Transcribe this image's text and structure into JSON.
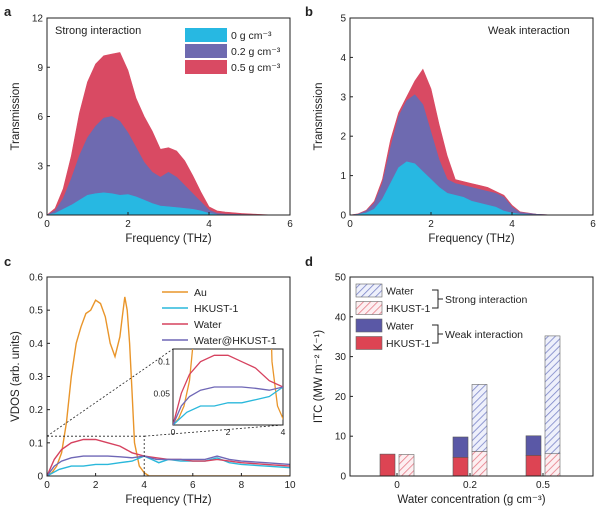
{
  "colors": {
    "s0": "#27b8e2",
    "s02": "#6e6ab0",
    "s05": "#d94a63",
    "au": "#e9952a",
    "hkust": "#2ab8db",
    "water": "#d6425f",
    "waterhk": "#6f67b6",
    "itc_hk": "#dd4453",
    "itc_water": "#5a58a6",
    "itc_hk_hatch": "#e77a86",
    "itc_water_hatch": "#7a84c7"
  },
  "panels": {
    "a": {
      "label": "a",
      "text": "Strong interaction"
    },
    "b": {
      "label": "b",
      "text": "Weak interaction"
    },
    "c": {
      "label": "c"
    },
    "d": {
      "label": "d"
    }
  },
  "chart_data": [
    {
      "type": "area",
      "panel": "a",
      "title": "Strong interaction",
      "xlabel": "Frequency (THz)",
      "ylabel": "Transmission",
      "xlim": [
        0,
        6
      ],
      "ylim": [
        0,
        12
      ],
      "xticks": [
        0,
        2,
        4,
        6
      ],
      "yticks": [
        0,
        3,
        6,
        9,
        12
      ],
      "legend": [
        "0 g cm⁻³",
        "0.2 g cm⁻³",
        "0.5 g cm⁻³"
      ],
      "legend_position": "top-right",
      "x": [
        0,
        0.2,
        0.4,
        0.6,
        0.8,
        1.0,
        1.2,
        1.4,
        1.6,
        1.8,
        2.0,
        2.2,
        2.4,
        2.6,
        2.8,
        3.0,
        3.2,
        3.4,
        3.6,
        3.8,
        4.0,
        4.2,
        4.4,
        4.8,
        5.2,
        5.6
      ],
      "series": [
        {
          "name": "0.5 g cm⁻³",
          "values": [
            0,
            0.4,
            1.6,
            3.6,
            6.2,
            8.1,
            9.2,
            9.7,
            9.8,
            9.9,
            8.8,
            7.1,
            6.0,
            5.1,
            4.0,
            4.1,
            3.9,
            3.3,
            2.4,
            1.4,
            0.5,
            0.25,
            0.18,
            0.1,
            0.04,
            0
          ]
        },
        {
          "name": "0.2 g cm⁻³",
          "values": [
            0,
            0.25,
            1.0,
            2.2,
            3.6,
            4.7,
            5.4,
            5.9,
            6.0,
            5.7,
            5.0,
            4.1,
            3.2,
            2.6,
            2.3,
            2.6,
            2.3,
            1.8,
            1.3,
            0.8,
            0.3,
            0.1,
            0.06,
            0.03,
            0.01,
            0
          ]
        },
        {
          "name": "0 g cm⁻³",
          "values": [
            0,
            0.1,
            0.35,
            0.6,
            0.9,
            1.2,
            1.3,
            1.35,
            1.3,
            1.2,
            1.25,
            1.1,
            0.9,
            0.7,
            0.55,
            0.5,
            0.45,
            0.4,
            0.35,
            0.25,
            0.1,
            0.03,
            0.01,
            0,
            0,
            0
          ]
        }
      ]
    },
    {
      "type": "area",
      "panel": "b",
      "title": "Weak interaction",
      "xlabel": "Frequency (THz)",
      "ylabel": "Transmission",
      "xlim": [
        0,
        6
      ],
      "ylim": [
        0,
        5
      ],
      "xticks": [
        0,
        2,
        4,
        6
      ],
      "yticks": [
        0,
        1,
        2,
        3,
        4,
        5
      ],
      "x": [
        0,
        0.2,
        0.4,
        0.6,
        0.8,
        1.0,
        1.2,
        1.4,
        1.6,
        1.8,
        2.0,
        2.2,
        2.4,
        2.6,
        2.8,
        3.0,
        3.2,
        3.4,
        3.6,
        3.8,
        4.0,
        4.2,
        4.6,
        5.0
      ],
      "series": [
        {
          "name": "0.5 g cm⁻³",
          "values": [
            0,
            0.03,
            0.12,
            0.35,
            0.9,
            1.9,
            2.6,
            3.0,
            3.4,
            3.7,
            3.2,
            2.3,
            1.5,
            0.9,
            0.85,
            0.8,
            0.75,
            0.7,
            0.6,
            0.5,
            0.25,
            0.08,
            0.02,
            0
          ]
        },
        {
          "name": "0.2 g cm⁻³",
          "values": [
            0,
            0.02,
            0.1,
            0.3,
            0.8,
            1.7,
            2.5,
            2.9,
            3.05,
            2.8,
            2.1,
            1.4,
            0.9,
            0.8,
            0.75,
            0.7,
            0.65,
            0.6,
            0.55,
            0.45,
            0.2,
            0.06,
            0.02,
            0
          ]
        },
        {
          "name": "0 g cm⁻³",
          "values": [
            0,
            0.01,
            0.05,
            0.15,
            0.4,
            0.8,
            1.2,
            1.35,
            1.3,
            1.1,
            0.9,
            0.7,
            0.55,
            0.5,
            0.45,
            0.35,
            0.3,
            0.25,
            0.2,
            0.1,
            0.05,
            0.02,
            0,
            0
          ]
        }
      ]
    },
    {
      "type": "line",
      "panel": "c",
      "xlabel": "Frequency (THz)",
      "ylabel": "VDOS (arb. units)",
      "xlim": [
        0,
        10
      ],
      "ylim": [
        0,
        0.6
      ],
      "xticks": [
        0,
        2,
        4,
        6,
        8,
        10
      ],
      "yticks": [
        0,
        0.1,
        0.2,
        0.3,
        0.4,
        0.5,
        0.6
      ],
      "legend": [
        "Au",
        "HKUST-1",
        "Water",
        "Water@HKUST-1"
      ],
      "legend_position": "top-right",
      "series": [
        {
          "name": "Au",
          "x": [
            0,
            0.2,
            0.4,
            0.6,
            0.8,
            1.0,
            1.2,
            1.4,
            1.6,
            1.8,
            2.0,
            2.2,
            2.4,
            2.6,
            2.8,
            3.0,
            3.1,
            3.2,
            3.3,
            3.4,
            3.5,
            3.6,
            3.8,
            4.0,
            4.2,
            4.5,
            5,
            6,
            7,
            8,
            9,
            10
          ],
          "y": [
            0,
            0.01,
            0.03,
            0.07,
            0.16,
            0.3,
            0.4,
            0.45,
            0.49,
            0.5,
            0.53,
            0.52,
            0.48,
            0.4,
            0.36,
            0.42,
            0.48,
            0.54,
            0.5,
            0.4,
            0.25,
            0.1,
            0.03,
            0.01,
            0,
            0,
            0,
            0,
            0,
            0,
            0,
            0
          ]
        },
        {
          "name": "HKUST-1",
          "x": [
            0,
            0.5,
            1,
            1.5,
            2,
            2.5,
            3,
            3.5,
            4,
            4.3,
            4.6,
            5,
            5.5,
            6,
            6.5,
            7,
            7.5,
            8,
            9,
            10
          ],
          "y": [
            0,
            0.02,
            0.03,
            0.03,
            0.035,
            0.035,
            0.04,
            0.045,
            0.06,
            0.05,
            0.04,
            0.05,
            0.045,
            0.045,
            0.045,
            0.055,
            0.04,
            0.035,
            0.03,
            0.025
          ]
        },
        {
          "name": "Water",
          "x": [
            0,
            0.3,
            0.6,
            1,
            1.5,
            2,
            2.5,
            3,
            3.5,
            4,
            4.5,
            5,
            5.5,
            6,
            6.5,
            7,
            7.5,
            8,
            9,
            10
          ],
          "y": [
            0,
            0.05,
            0.08,
            0.1,
            0.11,
            0.11,
            0.1,
            0.09,
            0.07,
            0.06,
            0.055,
            0.05,
            0.05,
            0.045,
            0.045,
            0.05,
            0.045,
            0.04,
            0.035,
            0.03
          ]
        },
        {
          "name": "Water@HKUST-1",
          "x": [
            0,
            0.3,
            0.6,
            1,
            1.5,
            2,
            2.5,
            3,
            3.5,
            4,
            4.5,
            5,
            5.5,
            6,
            6.5,
            7,
            7.5,
            8,
            9,
            10
          ],
          "y": [
            0,
            0.03,
            0.045,
            0.055,
            0.06,
            0.06,
            0.06,
            0.058,
            0.055,
            0.06,
            0.05,
            0.05,
            0.05,
            0.05,
            0.05,
            0.06,
            0.05,
            0.045,
            0.04,
            0.035
          ]
        }
      ],
      "inset": {
        "xlim": [
          0,
          4
        ],
        "ylim": [
          0,
          0.12
        ],
        "xticks": [
          0,
          2,
          4
        ],
        "yticks": [
          0.05,
          0.1
        ]
      }
    },
    {
      "type": "bar",
      "panel": "d",
      "xlabel": "Water concentration (g cm⁻³)",
      "ylabel": "ITC (MW m⁻² K⁻¹)",
      "categories": [
        "0",
        "0.2",
        "0.5"
      ],
      "ylim": [
        0,
        50
      ],
      "yticks": [
        0,
        10,
        20,
        30,
        40,
        50
      ],
      "series": [
        {
          "name": "Weak interaction HKUST-1",
          "values": [
            5.5,
            4.7,
            5.2
          ]
        },
        {
          "name": "Weak interaction Water",
          "values": [
            0,
            5.1,
            4.9
          ]
        },
        {
          "name": "Strong interaction HKUST-1",
          "values": [
            5.4,
            6.2,
            5.6
          ]
        },
        {
          "name": "Strong interaction Water",
          "values": [
            0,
            16.8,
            29.6
          ]
        }
      ],
      "legend": [
        {
          "label": "Water",
          "group": "Strong interaction"
        },
        {
          "label": "HKUST-1",
          "group": "Strong interaction"
        },
        {
          "label": "Water",
          "group": "Weak interaction"
        },
        {
          "label": "HKUST-1",
          "group": "Weak interaction"
        }
      ],
      "legend_groups": [
        "Strong interaction",
        "Weak interaction"
      ]
    }
  ]
}
